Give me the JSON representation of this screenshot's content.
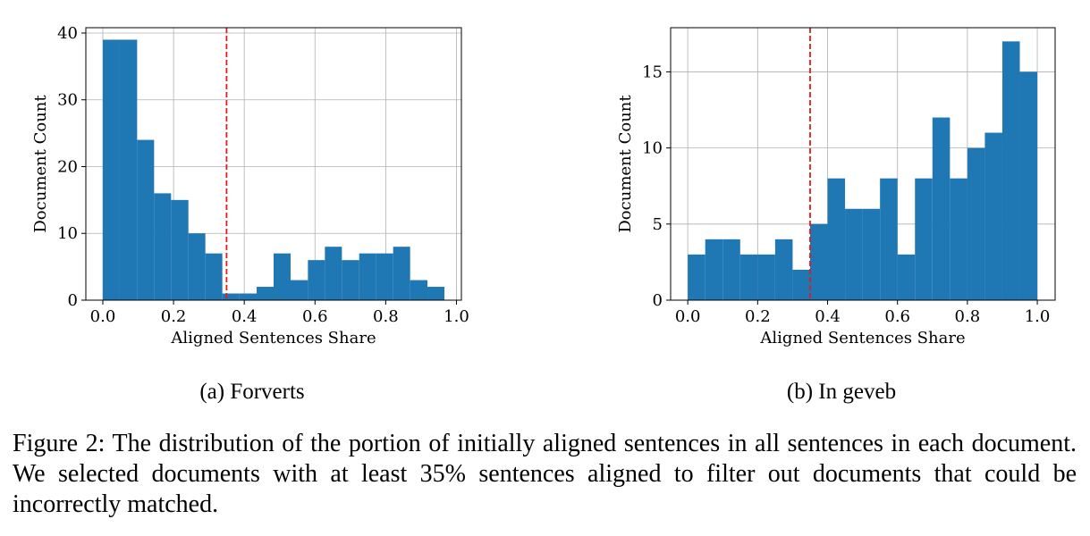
{
  "chart_data": [
    {
      "type": "histogram",
      "caption": "(a) Forverts",
      "xlabel": "Aligned Sentences Share",
      "ylabel": "Document Count",
      "bins": [
        0,
        0.048,
        0.097,
        0.145,
        0.193,
        0.242,
        0.29,
        0.338,
        0.386,
        0.435,
        0.483,
        0.531,
        0.58,
        0.628,
        0.676,
        0.725,
        0.773,
        0.821,
        0.869,
        0.918,
        0.966
      ],
      "values": [
        39,
        39,
        24,
        16,
        15,
        10,
        7,
        1,
        1,
        2,
        7,
        3,
        6,
        8,
        6,
        7,
        7,
        8,
        3,
        2
      ],
      "color": "#1f77b4",
      "threshold": 0.35,
      "threshold_color": "#e41a1c",
      "xlim": [
        -0.048,
        1.014
      ],
      "ylim": [
        0,
        40.8
      ],
      "xticks": [
        {
          "value": 0,
          "label": "0.0"
        },
        0.2,
        0.4,
        0.6,
        0.8,
        {
          "value": 1,
          "label": "1.0"
        }
      ],
      "yticks": [
        0,
        10,
        20,
        30,
        40
      ],
      "grid": true
    },
    {
      "type": "histogram",
      "caption": "(b) In geveb",
      "xlabel": "Aligned Sentences Share",
      "ylabel": "Document Count",
      "bins": [
        0,
        0.05,
        0.1,
        0.15,
        0.2,
        0.25,
        0.3,
        0.35,
        0.4,
        0.45,
        0.5,
        0.55,
        0.6,
        0.65,
        0.7,
        0.75,
        0.8,
        0.85,
        0.9,
        0.95,
        1.0
      ],
      "values": [
        3,
        4,
        4,
        3,
        3,
        4,
        2,
        5,
        8,
        6,
        6,
        8,
        3,
        8,
        12,
        8,
        10,
        11,
        17,
        15
      ],
      "color": "#1f77b4",
      "threshold": 0.35,
      "threshold_color": "#e41a1c",
      "xlim": [
        -0.049,
        1.051
      ],
      "ylim": [
        0,
        17.9
      ],
      "xticks": [
        {
          "value": 0,
          "label": "0.0"
        },
        0.2,
        0.4,
        0.6,
        0.8,
        {
          "value": 1,
          "label": "1.0"
        }
      ],
      "yticks": [
        0,
        5,
        10,
        15
      ],
      "grid": true
    }
  ],
  "caption": "Figure 2: The distribution of the portion of initially aligned sentences in all sentences in each document. We selected documents with at least 35% sentences aligned to filter out documents that could be incorrectly matched."
}
